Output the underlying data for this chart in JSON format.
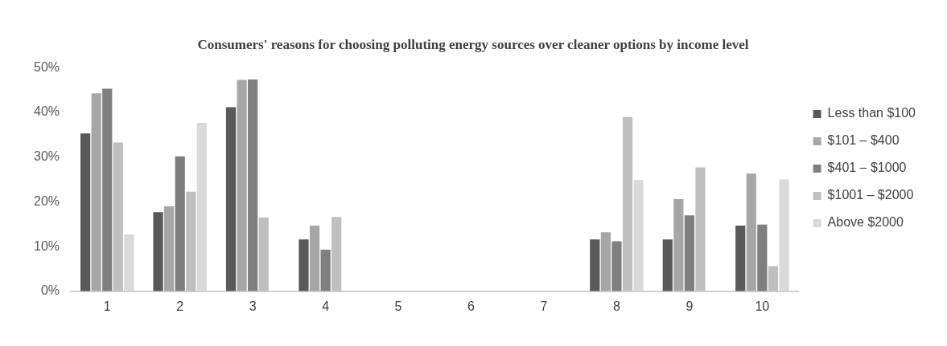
{
  "chart_data": {
    "type": "bar",
    "title": "Consumers' reasons for choosing polluting energy sources over cleaner options by income level",
    "categories": [
      "1",
      "2",
      "3",
      "4",
      "5",
      "6",
      "7",
      "8",
      "9",
      "10"
    ],
    "series": [
      {
        "name": "Less than $100",
        "color": "#595959",
        "values": [
          35.3,
          17.7,
          41.2,
          11.6,
          0,
          0,
          0,
          11.6,
          11.6,
          14.7
        ]
      },
      {
        "name": "$101 – $400",
        "color": "#a6a6a6",
        "values": [
          44.3,
          19,
          47.3,
          14.7,
          0,
          0,
          0,
          13.2,
          20.6,
          26.3
        ]
      },
      {
        "name": "$401 – $1000",
        "color": "#7f7f7f",
        "values": [
          45.3,
          30.2,
          47.4,
          9.3,
          0,
          0,
          0,
          11.2,
          17,
          14.9
        ]
      },
      {
        "name": "$1001 – $2000",
        "color": "#bfbfbf",
        "values": [
          33.3,
          22.3,
          16.5,
          16.6,
          0,
          0,
          0,
          39,
          27.7,
          5.6
        ]
      },
      {
        "name": "Above $2000",
        "color": "#d9d9d9",
        "values": [
          12.7,
          37.7,
          0,
          0,
          0,
          0,
          0,
          24.9,
          0,
          25
        ]
      }
    ],
    "ylim": [
      0,
      50
    ],
    "yticks": [
      {
        "value": 0,
        "label": "0%"
      },
      {
        "value": 10,
        "label": "10%"
      },
      {
        "value": 20,
        "label": "20%"
      },
      {
        "value": 30,
        "label": "30%"
      },
      {
        "value": 40,
        "label": "40%"
      },
      {
        "value": 50,
        "label": "50%"
      }
    ],
    "grid": false,
    "legend": "right"
  }
}
